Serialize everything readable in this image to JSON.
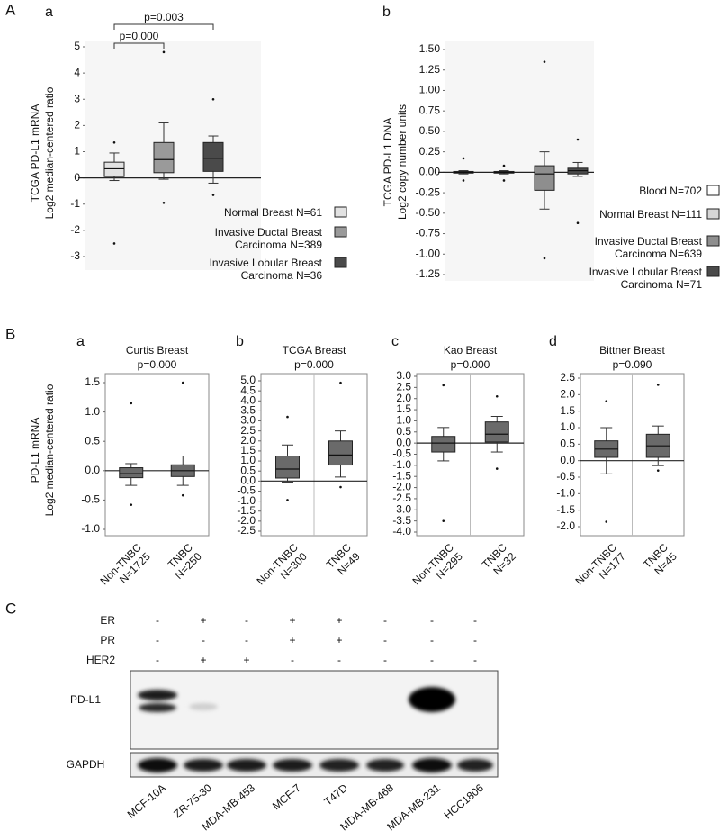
{
  "sections": [
    "A",
    "B",
    "C"
  ],
  "chart_data": [
    {
      "type": "box",
      "label": "a",
      "ylabel": [
        "TCGA PD-L1 mRNA",
        "Log2 median-centered ratio"
      ],
      "annotations": [
        "p=0.000",
        "p=0.003"
      ],
      "categories": [
        "Normal Breast N=61",
        "Invasive Ductal Breast Carcinoma N=389",
        "Invasive Lobular Breast Carcinoma N=36"
      ],
      "colors": [
        "#e2e2e2",
        "#9a9a9a",
        "#4a4a4a"
      ],
      "boxes": [
        {
          "whislo": -0.1,
          "q1": 0.05,
          "med": 0.35,
          "q3": 0.6,
          "whishi": 0.95,
          "fliers": [
            1.35,
            -2.5
          ]
        },
        {
          "whislo": -0.05,
          "q1": 0.2,
          "med": 0.7,
          "q3": 1.35,
          "whishi": 2.1,
          "fliers": [
            4.8,
            -0.95
          ]
        },
        {
          "whislo": -0.2,
          "q1": 0.25,
          "med": 0.75,
          "q3": 1.35,
          "whishi": 1.6,
          "fliers": [
            3.0,
            -0.65
          ]
        }
      ],
      "ylim": [
        -3,
        5
      ],
      "yticks": [
        -3,
        -2,
        -1,
        0,
        1,
        2,
        3,
        4,
        5
      ]
    },
    {
      "type": "box",
      "label": "b",
      "ylabel": [
        "TCGA PD-L1 DNA",
        "Log2 copy number units"
      ],
      "categories": [
        "Blood N=702",
        "Normal Breast N=111",
        "Invasive Ductal Breast Carcinoma N=639",
        "Invasive Lobular Breast Carcinoma N=71"
      ],
      "colors": [
        "#ffffff",
        "#d6d6d6",
        "#8e8e8e",
        "#4a4a4a"
      ],
      "boxes": [
        {
          "whislo": -0.02,
          "q1": -0.01,
          "med": 0,
          "q3": 0.01,
          "whishi": 0.02,
          "fliers": [
            0.17,
            -0.1
          ]
        },
        {
          "whislo": -0.02,
          "q1": -0.01,
          "med": 0,
          "q3": 0.01,
          "whishi": 0.02,
          "fliers": [
            0.08,
            -0.1
          ]
        },
        {
          "whislo": -0.45,
          "q1": -0.22,
          "med": -0.02,
          "q3": 0.08,
          "whishi": 0.25,
          "fliers": [
            1.35,
            -1.05
          ]
        },
        {
          "whislo": -0.05,
          "q1": -0.02,
          "med": 0.02,
          "q3": 0.05,
          "whishi": 0.12,
          "fliers": [
            0.4,
            -0.62
          ]
        }
      ],
      "ylim": [
        -1.25,
        1.5
      ],
      "yticks": [
        -1.25,
        {
          "value": -1,
          "label": "-1.00"
        },
        -0.75,
        {
          "value": -0.5,
          "label": "-0.50"
        },
        -0.25,
        {
          "value": 0,
          "label": "0.00"
        },
        0.25,
        {
          "value": 0.5,
          "label": "0.50"
        },
        0.75,
        {
          "value": 1,
          "label": "1.00"
        },
        1.25,
        {
          "value": 1.5,
          "label": "1.50"
        }
      ]
    },
    {
      "type": "box",
      "label": "a",
      "title": "Curtis Breast",
      "subtitle": "p=0.000",
      "ylabel": [
        "PD-L1 mRNA",
        "Log2 median-centered ratio"
      ],
      "categories": [
        "Non-TNBC N=1725",
        "TNBC N=250"
      ],
      "colors": [
        "#6a6a6a",
        "#6a6a6a"
      ],
      "boxes": [
        {
          "whislo": -0.25,
          "q1": -0.12,
          "med": -0.05,
          "q3": 0.05,
          "whishi": 0.12,
          "fliers": [
            1.15,
            -0.58
          ]
        },
        {
          "whislo": -0.25,
          "q1": -0.1,
          "med": 0.0,
          "q3": 0.1,
          "whishi": 0.25,
          "fliers": [
            1.5,
            -0.42
          ]
        }
      ],
      "ylim": [
        -1,
        1.5
      ],
      "yticks": [
        {
          "value": -1,
          "label": "-1.0"
        },
        -0.5,
        {
          "value": 0,
          "label": "0.0"
        },
        0.5,
        {
          "value": 1,
          "label": "1.0"
        },
        1.5
      ]
    },
    {
      "type": "box",
      "label": "b",
      "title": "TCGA Breast",
      "subtitle": "p=0.000",
      "categories": [
        "Non-TNBC N=300",
        "TNBC N=49"
      ],
      "colors": [
        "#6a6a6a",
        "#6a6a6a"
      ],
      "boxes": [
        {
          "whislo": -0.05,
          "q1": 0.15,
          "med": 0.6,
          "q3": 1.25,
          "whishi": 1.8,
          "fliers": [
            3.2,
            -0.95
          ]
        },
        {
          "whislo": 0.2,
          "q1": 0.8,
          "med": 1.3,
          "q3": 2.0,
          "whishi": 2.5,
          "fliers": [
            4.9,
            -0.3
          ]
        }
      ],
      "ylim": [
        -2.5,
        5
      ],
      "yticks": [
        -2.5,
        {
          "value": -2,
          "label": "-2.0"
        },
        -1.5,
        {
          "value": -1,
          "label": "-1.0"
        },
        -0.5,
        {
          "value": 0,
          "label": "0.0"
        },
        0.5,
        {
          "value": 1,
          "label": "1.0"
        },
        1.5,
        {
          "value": 2,
          "label": "2.0"
        },
        2.5,
        {
          "value": 3,
          "label": "3.0"
        },
        3.5,
        {
          "value": 4,
          "label": "4.0"
        },
        4.5,
        {
          "value": 5,
          "label": "5.0"
        }
      ]
    },
    {
      "type": "box",
      "label": "c",
      "title": "Kao Breast",
      "subtitle": "p=0.000",
      "categories": [
        "Non-TNBC N=295",
        "TNBC N=32"
      ],
      "colors": [
        "#6a6a6a",
        "#6a6a6a"
      ],
      "boxes": [
        {
          "whislo": -0.8,
          "q1": -0.4,
          "med": 0.0,
          "q3": 0.3,
          "whishi": 0.7,
          "fliers": [
            2.6,
            -3.5
          ]
        },
        {
          "whislo": -0.4,
          "q1": 0.05,
          "med": 0.4,
          "q3": 0.95,
          "whishi": 1.2,
          "fliers": [
            2.1,
            -1.15
          ]
        }
      ],
      "ylim": [
        -4,
        3
      ],
      "yticks": [
        {
          "value": -4,
          "label": "-4.0"
        },
        -3.5,
        {
          "value": -3,
          "label": "-3.0"
        },
        -2.5,
        {
          "value": -2,
          "label": "-2.0"
        },
        -1.5,
        {
          "value": -1,
          "label": "-1.0"
        },
        -0.5,
        {
          "value": 0,
          "label": "0.0"
        },
        0.5,
        {
          "value": 1,
          "label": "1.0"
        },
        1.5,
        {
          "value": 2,
          "label": "2.0"
        },
        2.5,
        {
          "value": 3,
          "label": "3.0"
        }
      ]
    },
    {
      "type": "box",
      "label": "d",
      "title": "Bittner Breast",
      "subtitle": "p=0.090",
      "categories": [
        "Non-TNBC N=177",
        "TNBC N=45"
      ],
      "colors": [
        "#6a6a6a",
        "#6a6a6a"
      ],
      "boxes": [
        {
          "whislo": -0.4,
          "q1": 0.1,
          "med": 0.35,
          "q3": 0.6,
          "whishi": 1.0,
          "fliers": [
            1.8,
            -1.85
          ]
        },
        {
          "whislo": -0.15,
          "q1": 0.1,
          "med": 0.45,
          "q3": 0.8,
          "whishi": 1.05,
          "fliers": [
            2.3,
            -0.3
          ]
        }
      ],
      "ylim": [
        -2,
        2.5
      ],
      "yticks": [
        {
          "value": -2,
          "label": "-2.0"
        },
        -1.5,
        {
          "value": -1,
          "label": "-1.0"
        },
        -0.5,
        {
          "value": 0,
          "label": "0.0"
        },
        0.5,
        {
          "value": 1,
          "label": "1.0"
        },
        1.5,
        {
          "value": 2,
          "label": "2.0"
        },
        2.5
      ]
    }
  ],
  "blot": {
    "rows": [
      {
        "label": "ER",
        "signs": [
          "-",
          "+",
          "-",
          "+",
          "+",
          "-",
          "-",
          "-"
        ]
      },
      {
        "label": "PR",
        "signs": [
          "-",
          "-",
          "-",
          "+",
          "+",
          "-",
          "-",
          "-"
        ]
      },
      {
        "label": "HER2",
        "signs": [
          "-",
          "+",
          "+",
          "-",
          "-",
          "-",
          "-",
          "-"
        ]
      }
    ],
    "bands": [
      "PD-L1",
      "GAPDH"
    ],
    "cell_lines": [
      "MCF-10A",
      "ZR-75-30",
      "MDA-MB-453",
      "MCF-7",
      "T47D",
      "MDA-MB-468",
      "MDA-MB-231",
      "HCC1806"
    ]
  }
}
